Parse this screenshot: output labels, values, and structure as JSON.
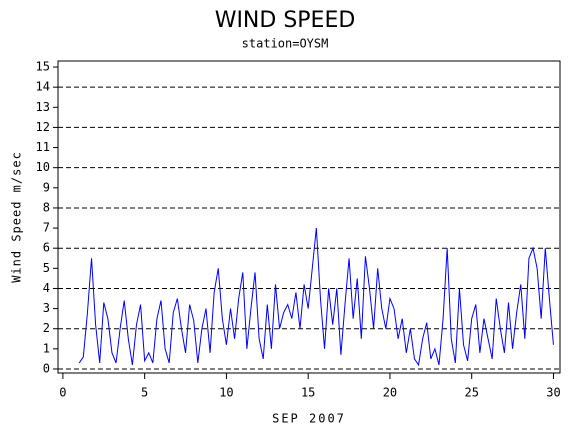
{
  "chart_data": {
    "type": "line",
    "title": "WIND SPEED",
    "subtitle": "station=OYSM",
    "x_label": "SEP 2007",
    "y_label": "Wind Speed m/sec",
    "xlim": [
      -0.3,
      30.4
    ],
    "ylim": [
      -0.2,
      15.3
    ],
    "xticks": [
      0,
      5,
      10,
      15,
      20,
      25,
      30
    ],
    "yticks": [
      0,
      1,
      2,
      3,
      4,
      5,
      6,
      7,
      8,
      9,
      10,
      11,
      12,
      13,
      14,
      15
    ],
    "grid_lines": [
      0,
      2,
      4,
      6,
      8,
      10,
      12,
      14
    ],
    "series": [
      {
        "color": "#0000ff",
        "x": [
          1.0,
          1.25,
          1.5,
          1.75,
          2.0,
          2.25,
          2.5,
          2.75,
          3.0,
          3.25,
          3.5,
          3.75,
          4.0,
          4.25,
          4.5,
          4.75,
          5.0,
          5.25,
          5.5,
          5.75,
          6.0,
          6.25,
          6.5,
          6.75,
          7.0,
          7.25,
          7.5,
          7.75,
          8.0,
          8.25,
          8.5,
          8.75,
          9.0,
          9.25,
          9.5,
          9.75,
          10.0,
          10.25,
          10.5,
          10.75,
          11.0,
          11.25,
          11.5,
          11.75,
          12.0,
          12.25,
          12.5,
          12.75,
          13.0,
          13.25,
          13.5,
          13.75,
          14.0,
          14.25,
          14.5,
          14.75,
          15.0,
          15.25,
          15.5,
          15.75,
          16.0,
          16.25,
          16.5,
          16.75,
          17.0,
          17.25,
          17.5,
          17.75,
          18.0,
          18.25,
          18.5,
          18.75,
          19.0,
          19.25,
          19.5,
          19.75,
          20.0,
          20.25,
          20.5,
          20.75,
          21.0,
          21.25,
          21.5,
          21.75,
          22.0,
          22.25,
          22.5,
          22.75,
          23.0,
          23.25,
          23.5,
          23.75,
          24.0,
          24.25,
          24.5,
          24.75,
          25.0,
          25.25,
          25.5,
          25.75,
          26.0,
          26.25,
          26.5,
          26.75,
          27.0,
          27.25,
          27.5,
          27.75,
          28.0,
          28.25,
          28.5,
          28.75,
          29.0,
          29.25,
          29.5,
          29.75,
          30.0
        ],
        "values": [
          0.3,
          0.6,
          2.8,
          5.5,
          2.2,
          0.3,
          3.3,
          2.5,
          0.8,
          0.3,
          2.0,
          3.4,
          1.5,
          0.2,
          2.2,
          3.2,
          0.4,
          0.8,
          0.3,
          2.5,
          3.4,
          1.0,
          0.3,
          2.8,
          3.5,
          2.0,
          0.8,
          3.2,
          2.4,
          0.3,
          2.0,
          3.0,
          0.8,
          3.8,
          5.0,
          2.5,
          1.2,
          3.0,
          1.5,
          3.5,
          4.8,
          1.0,
          3.0,
          4.8,
          1.5,
          0.5,
          3.2,
          1.0,
          4.2,
          2.0,
          2.8,
          3.2,
          2.5,
          3.8,
          2.0,
          4.2,
          3.0,
          5.0,
          7.0,
          3.5,
          1.0,
          4.0,
          2.2,
          4.0,
          0.7,
          3.2,
          5.5,
          2.5,
          4.5,
          1.5,
          5.6,
          4.0,
          2.0,
          5.0,
          3.0,
          2.0,
          3.5,
          3.0,
          1.5,
          2.5,
          0.8,
          2.0,
          0.5,
          0.2,
          1.5,
          2.3,
          0.5,
          1.0,
          0.2,
          2.5,
          6.0,
          1.5,
          0.3,
          4.0,
          1.2,
          0.4,
          2.5,
          3.2,
          0.8,
          2.5,
          1.5,
          0.5,
          3.5,
          2.0,
          0.8,
          3.3,
          1.0,
          2.8,
          4.2,
          1.5,
          5.5,
          6.0,
          5.0,
          2.5,
          6.0,
          3.5,
          1.2
        ]
      }
    ]
  }
}
